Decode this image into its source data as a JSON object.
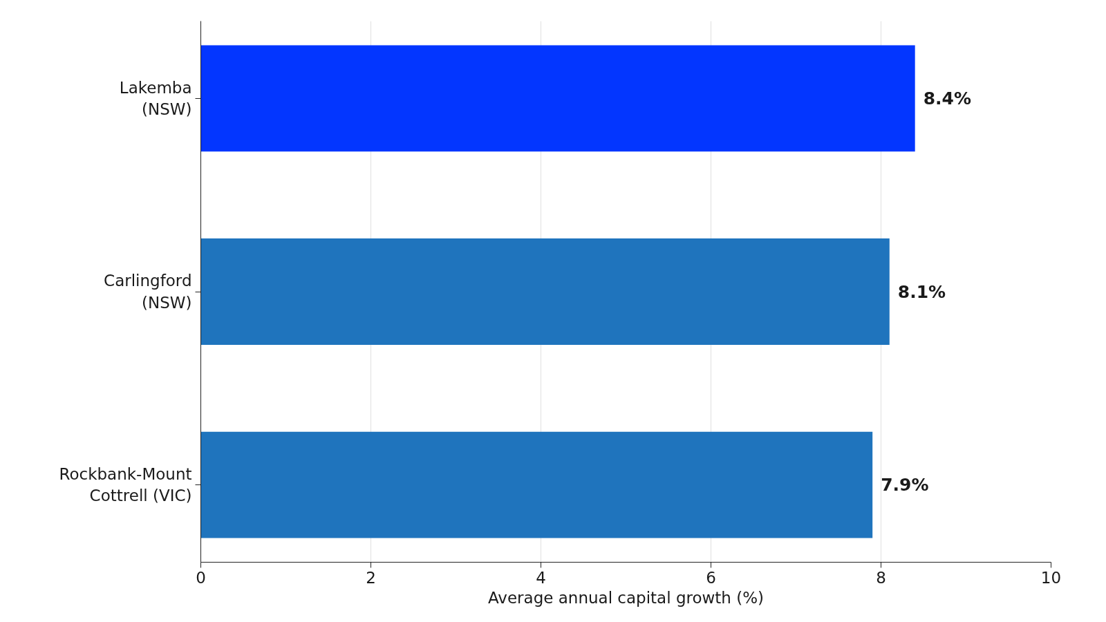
{
  "chart_data": {
    "type": "bar",
    "orientation": "horizontal",
    "categories": [
      "Lakemba\n(NSW)",
      "Carlingford\n(NSW)",
      "Rockbank-Mount\nCottrell (VIC)"
    ],
    "values": [
      8.4,
      8.1,
      7.9
    ],
    "colors": [
      "#0336ff",
      "#1f74bd",
      "#1f74bd"
    ],
    "value_labels": [
      "8.4%",
      "8.1%",
      "7.9%"
    ],
    "xlabel": "Average annual capital growth (%)",
    "xlim": [
      0,
      10
    ],
    "xticks": [
      0,
      2,
      4,
      6,
      8,
      10
    ],
    "grid": "x"
  }
}
